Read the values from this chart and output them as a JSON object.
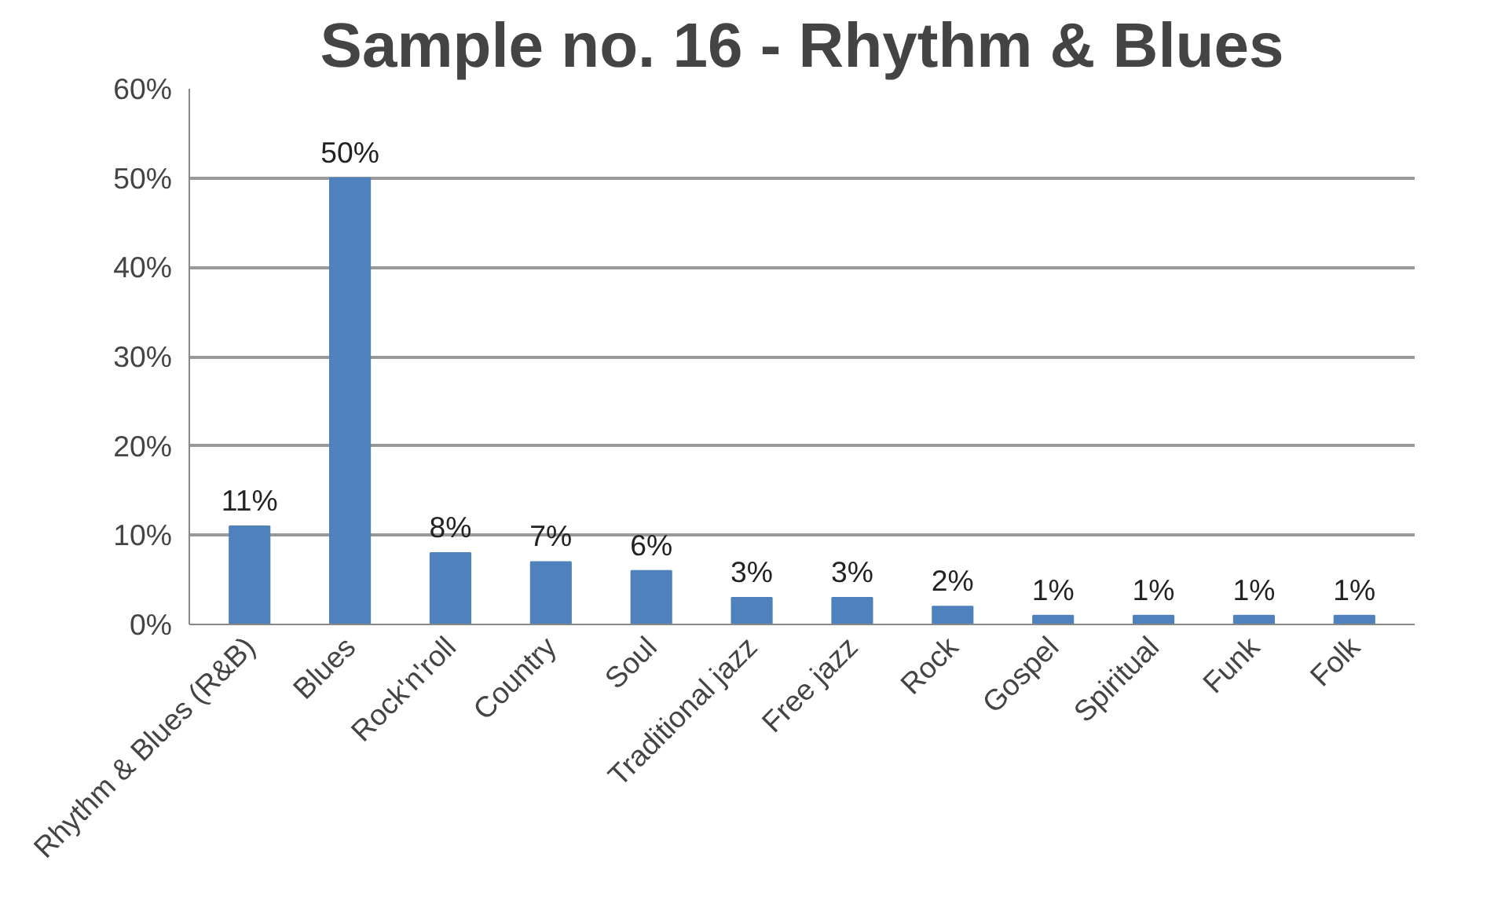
{
  "chart_data": {
    "type": "bar",
    "title": "Sample no. 16 - Rhythm & Blues",
    "categories": [
      "Rhythm & Blues (R&B)",
      "Blues",
      "Rock'n'roll",
      "Country",
      "Soul",
      "Traditional jazz",
      "Free jazz",
      "Rock",
      "Gospel",
      "Spiritual",
      "Funk",
      "Folk"
    ],
    "values": [
      11,
      50,
      8,
      7,
      6,
      3,
      3,
      2,
      1,
      1,
      1,
      1
    ],
    "color": "#4f81bd",
    "data_labels": true,
    "value_labels": [
      "11%",
      "50%",
      "8%",
      "7%",
      "6%",
      "3%",
      "3%",
      "2%",
      "1%",
      "1%",
      "1%",
      "1%"
    ],
    "ylim": [
      0,
      60
    ],
    "yticks": [
      {
        "value": 0,
        "label": "0%"
      },
      {
        "value": 10,
        "label": "10%"
      },
      {
        "value": 20,
        "label": "20%"
      },
      {
        "value": 30,
        "label": "30%"
      },
      {
        "value": 40,
        "label": "40%"
      },
      {
        "value": 50,
        "label": "50%"
      },
      {
        "value": 60,
        "label": "60%"
      }
    ],
    "grid": "y"
  }
}
